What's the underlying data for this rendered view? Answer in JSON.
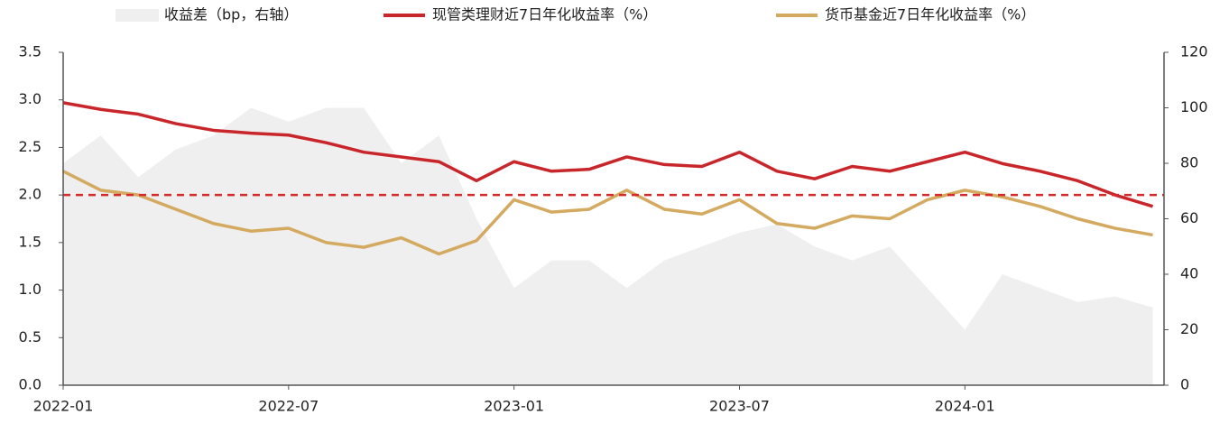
{
  "chart_data": {
    "type": "line",
    "x": [
      "2022-01",
      "2022-02",
      "2022-03",
      "2022-04",
      "2022-05",
      "2022-06",
      "2022-07",
      "2022-08",
      "2022-09",
      "2022-10",
      "2022-11",
      "2022-12",
      "2023-01",
      "2023-02",
      "2023-03",
      "2023-04",
      "2023-05",
      "2023-06",
      "2023-07",
      "2023-08",
      "2023-09",
      "2023-10",
      "2023-11",
      "2023-12",
      "2024-01",
      "2024-02",
      "2024-03",
      "2024-04",
      "2024-05",
      "2024-06"
    ],
    "xlim": [
      "2022-01",
      "2024-06"
    ],
    "xticks": [
      "2022-01",
      "2022-07",
      "2023-01",
      "2023-07",
      "2024-01"
    ],
    "ylim": [
      0,
      3.5
    ],
    "yticks": [
      {
        "value": 0,
        "label": "0.0"
      },
      0.5,
      {
        "value": 1,
        "label": "1.0"
      },
      1.5,
      {
        "value": 2,
        "label": "2.0"
      },
      2.5,
      {
        "value": 3,
        "label": "3.0"
      },
      3.5
    ],
    "y2lim": [
      0,
      120
    ],
    "y2ticks": [
      0,
      20,
      40,
      60,
      80,
      100,
      120
    ],
    "reference_line": {
      "value": 2.0,
      "color": "#d42a2a"
    },
    "series": [
      {
        "name": "收益差（bp，右轴）",
        "color": "#efefef",
        "axis": "y2",
        "kind": "area",
        "values": [
          80,
          90,
          75,
          85,
          90,
          100,
          95,
          100,
          100,
          80,
          90,
          60,
          35,
          45,
          45,
          35,
          45,
          50,
          55,
          58,
          50,
          45,
          50,
          35,
          20,
          40,
          35,
          30,
          32,
          28
        ]
      },
      {
        "name": "现管类理财近7日年化收益率（%）",
        "color": "#c8262b",
        "kind": "line",
        "values": [
          2.97,
          2.9,
          2.85,
          2.75,
          2.68,
          2.65,
          2.63,
          2.55,
          2.45,
          2.4,
          2.35,
          2.15,
          2.35,
          2.25,
          2.27,
          2.4,
          2.32,
          2.3,
          2.45,
          2.25,
          2.17,
          2.3,
          2.25,
          2.35,
          2.45,
          2.33,
          2.25,
          2.15,
          2.0,
          1.88
        ]
      },
      {
        "name": "货币基金近7日年化收益率（%）",
        "color": "#d4a960",
        "kind": "line",
        "values": [
          2.25,
          2.05,
          2.0,
          1.85,
          1.7,
          1.62,
          1.65,
          1.5,
          1.45,
          1.55,
          1.38,
          1.52,
          1.95,
          1.82,
          1.85,
          2.05,
          1.85,
          1.8,
          1.95,
          1.7,
          1.65,
          1.78,
          1.75,
          1.95,
          2.05,
          1.98,
          1.88,
          1.75,
          1.65,
          1.58
        ]
      }
    ]
  }
}
